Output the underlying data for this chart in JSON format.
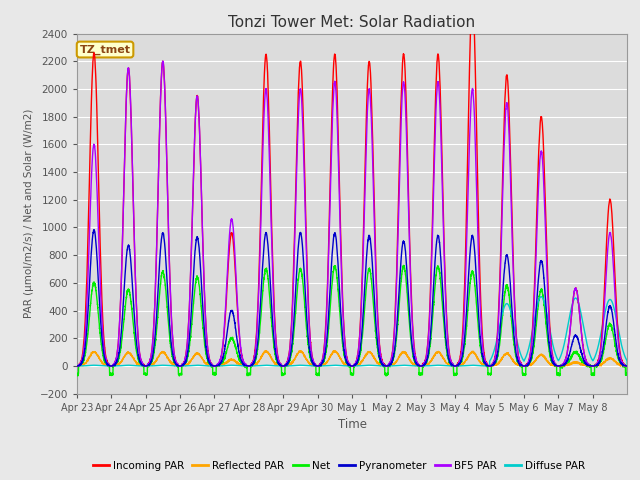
{
  "title": "Tonzi Tower Met: Solar Radiation",
  "xlabel": "Time",
  "ylabel": "PAR (μmol/m2/s) / Net and Solar (W/m2)",
  "ylim": [
    -200,
    2400
  ],
  "tz_label": "TZ_tmet",
  "fig_bg_color": "#e8e8e8",
  "plot_bg_color": "#dcdcdc",
  "grid_color": "#ffffff",
  "legend_entries": [
    {
      "label": "Incoming PAR",
      "color": "#ff0000"
    },
    {
      "label": "Reflected PAR",
      "color": "#ffa500"
    },
    {
      "label": "Net",
      "color": "#00ee00"
    },
    {
      "label": "Pyranometer",
      "color": "#0000cc"
    },
    {
      "label": "BF5 PAR",
      "color": "#aa00ff"
    },
    {
      "label": "Diffuse PAR",
      "color": "#00cccc"
    }
  ],
  "date_labels": [
    "Apr 23",
    "Apr 24",
    "Apr 25",
    "Apr 26",
    "Apr 27",
    "Apr 28",
    "Apr 29",
    "Apr 30",
    "May 1",
    "May 2",
    "May 3",
    "May 4",
    "May 5",
    "May 6",
    "May 7",
    "May 8"
  ],
  "n_days": 16,
  "incoming_peaks": [
    2260,
    2150,
    2200,
    1950,
    960,
    2250,
    2200,
    2250,
    2200,
    2250,
    2250,
    2650,
    2100,
    1800,
    560,
    1200
  ],
  "bf5_peaks": [
    1600,
    2150,
    2200,
    1950,
    1060,
    2000,
    2000,
    2050,
    2000,
    2050,
    2050,
    2000,
    1900,
    1550,
    560,
    960
  ],
  "pyrano_peaks": [
    980,
    870,
    960,
    930,
    400,
    960,
    960,
    960,
    940,
    900,
    940,
    940,
    800,
    760,
    220,
    430
  ],
  "reflected_peaks": [
    100,
    95,
    100,
    90,
    45,
    105,
    105,
    105,
    100,
    100,
    100,
    100,
    90,
    80,
    25,
    55
  ],
  "net_peaks": [
    600,
    550,
    680,
    640,
    200,
    700,
    700,
    720,
    700,
    720,
    720,
    680,
    580,
    550,
    100,
    300
  ],
  "diffuse_peaks": [
    5,
    5,
    5,
    5,
    5,
    5,
    5,
    5,
    5,
    5,
    5,
    5,
    450,
    500,
    490,
    480
  ]
}
